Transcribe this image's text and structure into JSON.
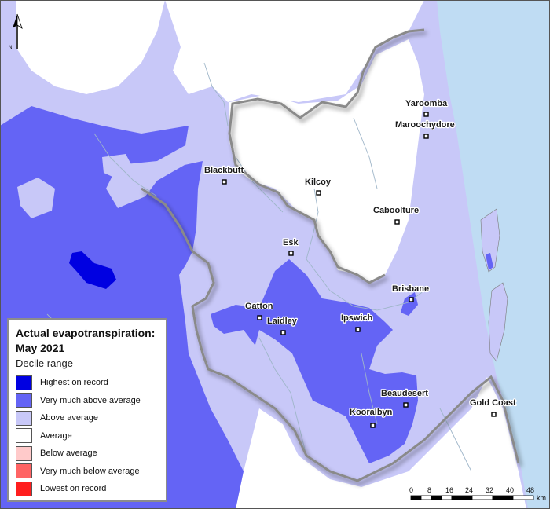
{
  "map": {
    "colors": {
      "sea": "#bfdcf3",
      "outside": "#ffffff",
      "river": "#9fb6c9",
      "boundary": "#7a7a7a"
    },
    "north_label": "N",
    "towns": [
      {
        "id": "yaroomba",
        "name": "Yaroomba"
      },
      {
        "id": "maroochydore",
        "name": "Maroochydore"
      },
      {
        "id": "blackbutt",
        "name": "Blackbutt"
      },
      {
        "id": "kilcoy",
        "name": "Kilcoy"
      },
      {
        "id": "caboolture",
        "name": "Caboolture"
      },
      {
        "id": "esk",
        "name": "Esk"
      },
      {
        "id": "brisbane",
        "name": "Brisbane"
      },
      {
        "id": "gatton",
        "name": "Gatton"
      },
      {
        "id": "laidley",
        "name": "Laidley"
      },
      {
        "id": "ipswich",
        "name": "Ipswich"
      },
      {
        "id": "beaudesert",
        "name": "Beaudesert"
      },
      {
        "id": "kooralbyn",
        "name": "Kooralbyn"
      },
      {
        "id": "gold_coast",
        "name": "Gold Coast"
      }
    ]
  },
  "legend": {
    "title": "Actual evapotranspiration: May 2021",
    "subtitle": "Decile range",
    "items": [
      {
        "label": "Highest on record",
        "color": "#0000e1"
      },
      {
        "label": "Very much above average",
        "color": "#6464f5"
      },
      {
        "label": "Above average",
        "color": "#c8c8f8"
      },
      {
        "label": "Average",
        "color": "#ffffff"
      },
      {
        "label": "Below average",
        "color": "#ffcaca"
      },
      {
        "label": "Very much below average",
        "color": "#ff6464"
      },
      {
        "label": "Lowest on record",
        "color": "#ff1e1e"
      }
    ]
  },
  "scalebar": {
    "ticks": [
      "0",
      "8",
      "16",
      "24",
      "32",
      "40",
      "48"
    ],
    "unit": "km"
  }
}
